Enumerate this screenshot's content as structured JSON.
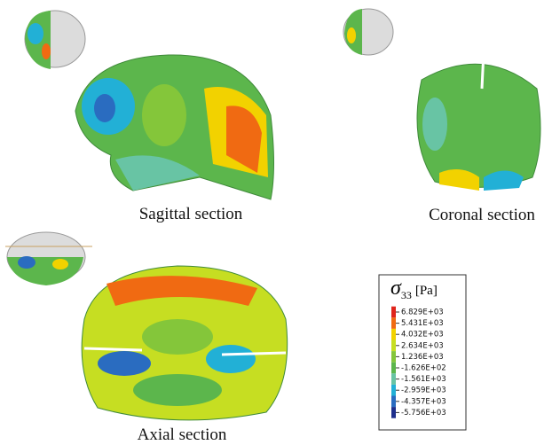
{
  "figure": {
    "captions": {
      "sagittal": "Sagittal section",
      "coronal": "Coronal section",
      "axial": "Axial section"
    },
    "legend": {
      "title": {
        "symbol": "σ",
        "subscript": "33",
        "unit": "[Pa]"
      },
      "entries": [
        {
          "label": "6.829E+03",
          "color": "#e0251c"
        },
        {
          "label": "5.431E+03",
          "color": "#f06a12"
        },
        {
          "label": "4.032E+03",
          "color": "#f2d200"
        },
        {
          "label": "2.634E+03",
          "color": "#c6de22"
        },
        {
          "label": "1.236E+03",
          "color": "#84c63a"
        },
        {
          "label": "-1.626E+02",
          "color": "#5cb64c"
        },
        {
          "label": "-1.561E+03",
          "color": "#68c4a4"
        },
        {
          "label": "-2.959E+03",
          "color": "#22b0d6"
        },
        {
          "label": "-4.357E+03",
          "color": "#2a6cc0"
        },
        {
          "label": "-5.756E+03",
          "color": "#1e2f8c"
        }
      ]
    }
  }
}
